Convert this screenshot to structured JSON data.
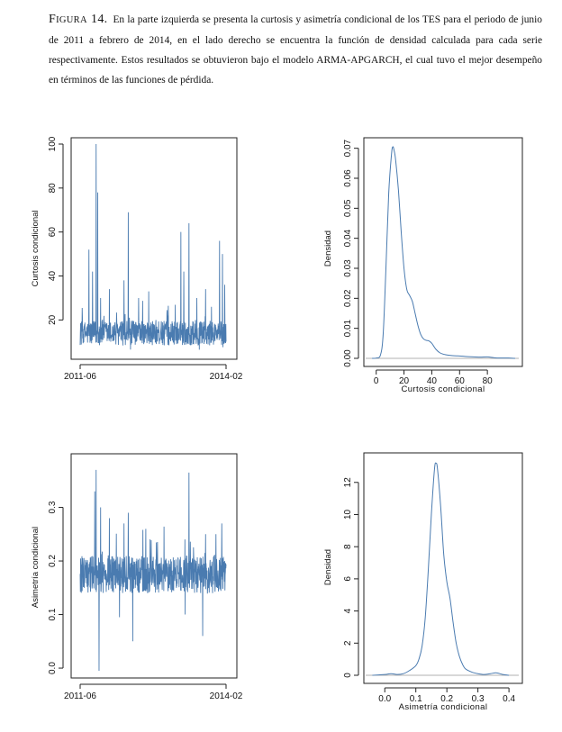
{
  "caption": {
    "label_first": "F",
    "label_rest": "IGURA",
    "label_number": "14.",
    "text": "En la parte izquierda se presenta la curtosis y asimetría condicional de los TES para el periodo de junio de 2011 a febrero de 2014, en el lado derecho se encuentra la función de densidad calculada para cada serie respectivamente. Estos resultados se obtuvieron bajo el modelo ARMA-APGARCH, el cual tuvo el mejor desempeño en términos de las funciones de pérdida."
  },
  "colors": {
    "series": "#4a7bb0",
    "axis": "#222222",
    "baseline": "#b0b0b0"
  },
  "chart_data": [
    {
      "type": "line",
      "ylabel": "Curtosis condicional",
      "xlabel": "",
      "xticks": [
        "2011-06",
        "2014-02"
      ],
      "yticks": [
        20,
        40,
        60,
        80,
        100
      ],
      "ylim": [
        5,
        100
      ],
      "n_points": 650,
      "base_level": 14,
      "noise_amp": 8,
      "min": 6,
      "peaks": [
        {
          "t": 0.015,
          "v": 21
        },
        {
          "t": 0.03,
          "v": 18
        },
        {
          "t": 0.06,
          "v": 52
        },
        {
          "t": 0.085,
          "v": 42
        },
        {
          "t": 0.11,
          "v": 100
        },
        {
          "t": 0.12,
          "v": 78
        },
        {
          "t": 0.14,
          "v": 30
        },
        {
          "t": 0.2,
          "v": 34
        },
        {
          "t": 0.3,
          "v": 38
        },
        {
          "t": 0.33,
          "v": 69
        },
        {
          "t": 0.4,
          "v": 30
        },
        {
          "t": 0.47,
          "v": 33
        },
        {
          "t": 0.52,
          "v": 20
        },
        {
          "t": 0.6,
          "v": 22
        },
        {
          "t": 0.69,
          "v": 60
        },
        {
          "t": 0.71,
          "v": 42
        },
        {
          "t": 0.745,
          "v": 64
        },
        {
          "t": 0.8,
          "v": 30
        },
        {
          "t": 0.86,
          "v": 34
        },
        {
          "t": 0.9,
          "v": 26
        },
        {
          "t": 0.955,
          "v": 56
        },
        {
          "t": 0.975,
          "v": 50
        },
        {
          "t": 0.99,
          "v": 36
        }
      ]
    },
    {
      "type": "area",
      "ylabel": "Densidad",
      "xlabel": "Curtosis condicional",
      "xticks": [
        0,
        20,
        40,
        60,
        80
      ],
      "yticks": [
        0.0,
        0.01,
        0.02,
        0.03,
        0.04,
        0.05,
        0.06,
        0.07
      ],
      "xlim": [
        -5,
        100
      ],
      "ylim": [
        0,
        0.072
      ],
      "x": [
        -3,
        0,
        3,
        5,
        7,
        9,
        11,
        12,
        13,
        14,
        16,
        18,
        20,
        22,
        24,
        26,
        28,
        30,
        32,
        34,
        36,
        38,
        40,
        43,
        46,
        50,
        55,
        60,
        65,
        70,
        75,
        80,
        85,
        90,
        95,
        100
      ],
      "y": [
        0,
        0.0001,
        0.001,
        0.008,
        0.03,
        0.055,
        0.068,
        0.0705,
        0.069,
        0.066,
        0.056,
        0.042,
        0.03,
        0.023,
        0.021,
        0.019,
        0.015,
        0.011,
        0.008,
        0.0065,
        0.006,
        0.0058,
        0.005,
        0.003,
        0.0018,
        0.0012,
        0.0009,
        0.0008,
        0.0006,
        0.0005,
        0.0004,
        0.0005,
        0.0002,
        0.0001,
        0.0001,
        0
      ]
    },
    {
      "type": "line",
      "ylabel": "Asimetría condicional",
      "xlabel": "",
      "xticks": [
        "2011-06",
        "2014-02"
      ],
      "yticks": [
        0.0,
        0.1,
        0.2,
        0.3
      ],
      "ylim": [
        -0.01,
        0.39
      ],
      "n_points": 650,
      "base_level": 0.175,
      "noise_amp": 0.05,
      "min": 0.05,
      "peaks": [
        {
          "t": 0.11,
          "v": 0.37
        },
        {
          "t": 0.13,
          "v": -0.005
        },
        {
          "t": 0.1,
          "v": 0.33
        },
        {
          "t": 0.14,
          "v": 0.3
        },
        {
          "t": 0.2,
          "v": 0.28
        },
        {
          "t": 0.27,
          "v": 0.095
        },
        {
          "t": 0.3,
          "v": 0.27
        },
        {
          "t": 0.33,
          "v": 0.29
        },
        {
          "t": 0.36,
          "v": 0.05
        },
        {
          "t": 0.45,
          "v": 0.26
        },
        {
          "t": 0.72,
          "v": 0.1
        },
        {
          "t": 0.745,
          "v": 0.365
        },
        {
          "t": 0.84,
          "v": 0.06
        },
        {
          "t": 0.86,
          "v": 0.25
        },
        {
          "t": 0.93,
          "v": 0.25
        },
        {
          "t": 0.97,
          "v": 0.27
        }
      ]
    },
    {
      "type": "area",
      "ylabel": "Densidad",
      "xlabel": "Asimetría condicional",
      "xticks": [
        "0.0",
        "0.1",
        "0.2",
        "0.3",
        "0.4"
      ],
      "yticks": [
        0,
        2,
        4,
        6,
        8,
        10,
        12
      ],
      "xlim": [
        -0.05,
        0.42
      ],
      "ylim": [
        0,
        13.5
      ],
      "x": [
        -0.04,
        0.0,
        0.02,
        0.04,
        0.06,
        0.08,
        0.1,
        0.11,
        0.12,
        0.13,
        0.14,
        0.15,
        0.16,
        0.165,
        0.17,
        0.18,
        0.19,
        0.2,
        0.21,
        0.22,
        0.23,
        0.24,
        0.25,
        0.26,
        0.28,
        0.3,
        0.32,
        0.34,
        0.36,
        0.38,
        0.4
      ],
      "y": [
        0,
        0.05,
        0.1,
        0.05,
        0.1,
        0.3,
        0.6,
        1.0,
        1.8,
        3.5,
        6.5,
        10.0,
        12.8,
        13.2,
        12.8,
        10.5,
        7.5,
        5.8,
        4.8,
        3.3,
        2.0,
        1.2,
        0.7,
        0.4,
        0.2,
        0.1,
        0.05,
        0.1,
        0.15,
        0.05,
        0
      ]
    }
  ]
}
